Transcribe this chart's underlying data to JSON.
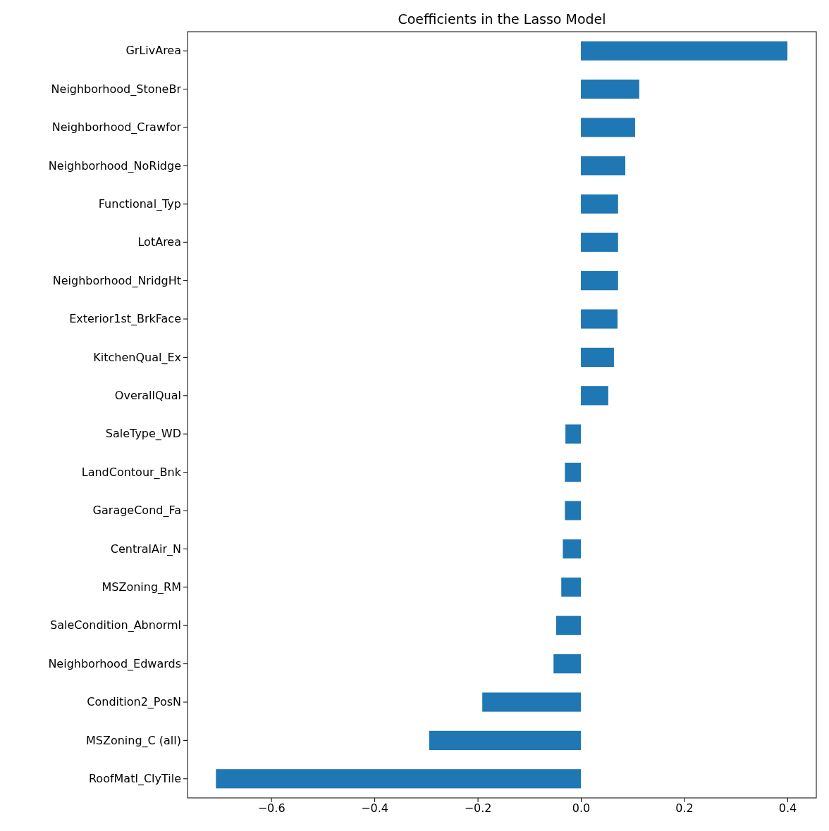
{
  "chart_data": {
    "type": "bar",
    "orientation": "horizontal",
    "title": "Coefficients in the Lasso Model",
    "categories": [
      "GrLivArea",
      "Neighborhood_StoneBr",
      "Neighborhood_Crawfor",
      "Neighborhood_NoRidge",
      "Functional_Typ",
      "LotArea",
      "Neighborhood_NridgHt",
      "Exterior1st_BrkFace",
      "KitchenQual_Ex",
      "OverallQual",
      "SaleType_WD",
      "LandContour_Bnk",
      "GarageCond_Fa",
      "CentralAir_N",
      "MSZoning_RM",
      "SaleCondition_Abnorml",
      "Neighborhood_Edwards",
      "Condition2_PosN",
      "MSZoning_C (all)",
      "RoofMatl_ClyTile"
    ],
    "values": [
      0.4,
      0.113,
      0.105,
      0.086,
      0.072,
      0.072,
      0.072,
      0.071,
      0.064,
      0.053,
      -0.03,
      -0.031,
      -0.031,
      -0.035,
      -0.038,
      -0.048,
      -0.053,
      -0.191,
      -0.294,
      -0.707
    ],
    "color": "#1f77b4",
    "xlim": [
      -0.762,
      0.456
    ],
    "xticks": [
      {
        "value": -0.6,
        "label": "−0.6"
      },
      {
        "value": -0.4,
        "label": "−0.4"
      },
      {
        "value": -0.2,
        "label": "−0.2"
      },
      {
        "value": 0,
        "label": "0.0"
      },
      {
        "value": 0.2,
        "label": "0.2"
      },
      {
        "value": 0.4,
        "label": "0.4"
      }
    ],
    "grid": false
  }
}
